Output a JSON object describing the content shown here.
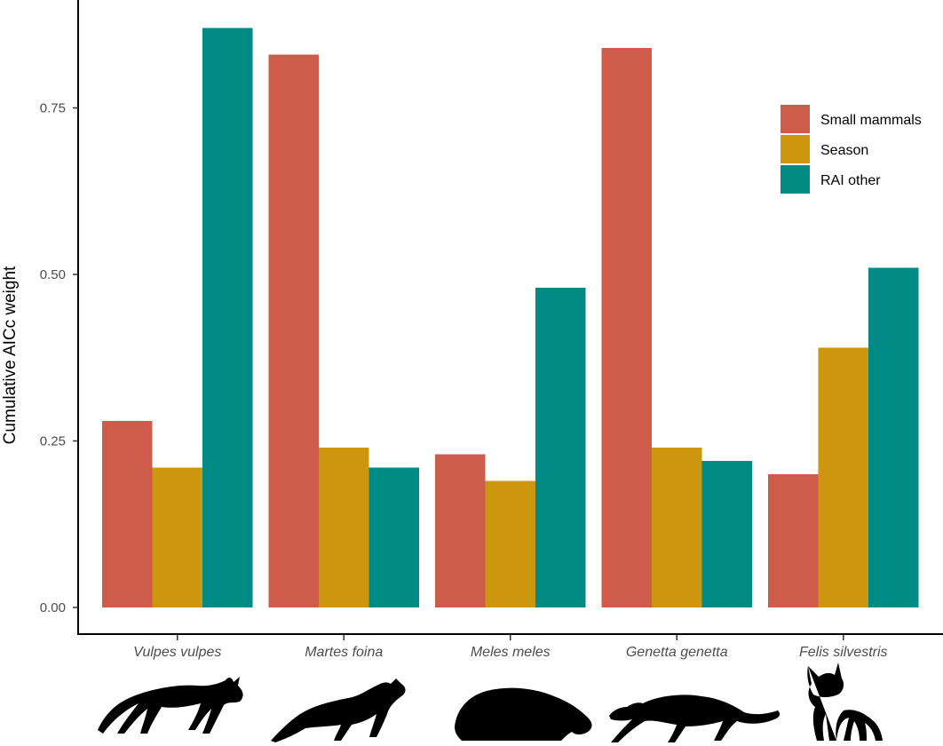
{
  "chart_data": {
    "type": "bar",
    "categories": [
      "Vulpes vulpes",
      "Martes foina",
      "Meles meles",
      "Genetta genetta",
      "Felis silvestris"
    ],
    "series": [
      {
        "name": "Small mammals",
        "color": "#cd5c4a",
        "values": [
          0.28,
          0.83,
          0.23,
          0.84,
          0.2
        ]
      },
      {
        "name": "Season",
        "color": "#cd960f",
        "values": [
          0.21,
          0.24,
          0.19,
          0.24,
          0.39
        ]
      },
      {
        "name": "RAI other",
        "color": "#008b84",
        "values": [
          0.87,
          0.21,
          0.48,
          0.22,
          0.51
        ]
      }
    ],
    "ylabel": "Cumulative AICc weight",
    "xlabel": "",
    "ylim": [
      0,
      0.88
    ],
    "yticks": [
      "0.00",
      "0.25",
      "0.50",
      "0.75"
    ],
    "grid": false,
    "legend_position": "top-right",
    "silhouette_icons": [
      "fox-silhouette-icon",
      "marten-silhouette-icon",
      "badger-silhouette-icon",
      "genet-silhouette-icon",
      "wildcat-silhouette-icon"
    ]
  }
}
